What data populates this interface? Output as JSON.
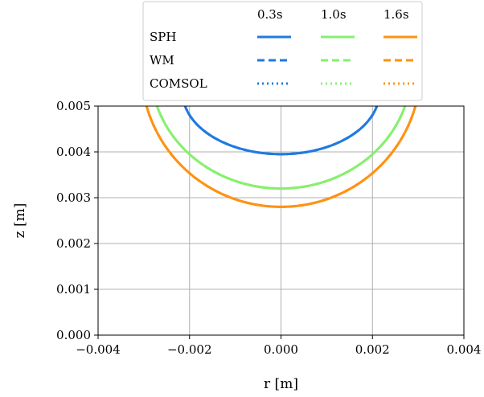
{
  "chart_data": {
    "type": "line",
    "title": "",
    "xlabel": "r [m]",
    "ylabel": "z [m]",
    "xlim": [
      -0.004,
      0.004
    ],
    "ylim": [
      0.0,
      0.005
    ],
    "xticks": [
      -0.004,
      -0.002,
      0.0,
      0.002,
      0.004
    ],
    "yticks": [
      0.0,
      0.001,
      0.002,
      0.003,
      0.004,
      0.005
    ],
    "xtick_labels": [
      "−0.004",
      "−0.002",
      "0.000",
      "0.002",
      "0.004"
    ],
    "ytick_labels": [
      "0.000",
      "0.001",
      "0.002",
      "0.003",
      "0.004",
      "0.005"
    ],
    "grid": true,
    "legend": {
      "placement": "top-center",
      "columns": [
        "0.3s",
        "1.0s",
        "1.6s"
      ],
      "rows": [
        "SPH",
        "WM",
        "COMSOL"
      ]
    },
    "colors": {
      "0.3s": "#1f7ae0",
      "1.0s": "#86f06e",
      "1.6s": "#ff9211"
    },
    "series": [
      {
        "time": "0.3s",
        "method": "SPH",
        "center_z": 0.0053,
        "r_radius": 0.00215,
        "z_radius": 0.00135
      },
      {
        "time": "0.3s",
        "method": "WM",
        "center_z": 0.0053,
        "r_radius": 0.00215,
        "z_radius": 0.00135
      },
      {
        "time": "0.3s",
        "method": "COMSOL",
        "center_z": 0.0053,
        "r_radius": 0.00215,
        "z_radius": 0.00135
      },
      {
        "time": "1.0s",
        "method": "SPH",
        "center_z": 0.0058,
        "r_radius": 0.00285,
        "z_radius": 0.0026
      },
      {
        "time": "1.0s",
        "method": "WM",
        "center_z": 0.0058,
        "r_radius": 0.00285,
        "z_radius": 0.0026
      },
      {
        "time": "1.0s",
        "method": "COMSOL",
        "center_z": 0.0058,
        "r_radius": 0.00285,
        "z_radius": 0.0026
      },
      {
        "time": "1.6s",
        "method": "SPH",
        "center_z": 0.0058,
        "r_radius": 0.00305,
        "z_radius": 0.003
      },
      {
        "time": "1.6s",
        "method": "WM",
        "center_z": 0.0058,
        "r_radius": 0.00305,
        "z_radius": 0.003
      },
      {
        "time": "1.6s",
        "method": "COMSOL",
        "center_z": 0.0058,
        "r_radius": 0.00305,
        "z_radius": 0.003
      }
    ]
  }
}
